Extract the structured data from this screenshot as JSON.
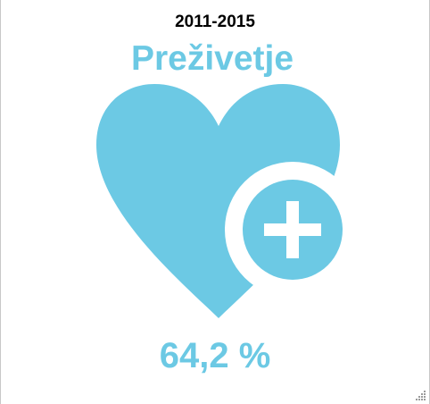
{
  "period": "2011-2015",
  "title": "Preživetje",
  "value": "64,2 %",
  "colors": {
    "accent": "#6cc9e4",
    "text": "#000000",
    "background": "#ffffff"
  },
  "icons": {
    "main": "heart-icon",
    "badge": "plus-circle-icon",
    "corner": "resize-grip-icon"
  }
}
